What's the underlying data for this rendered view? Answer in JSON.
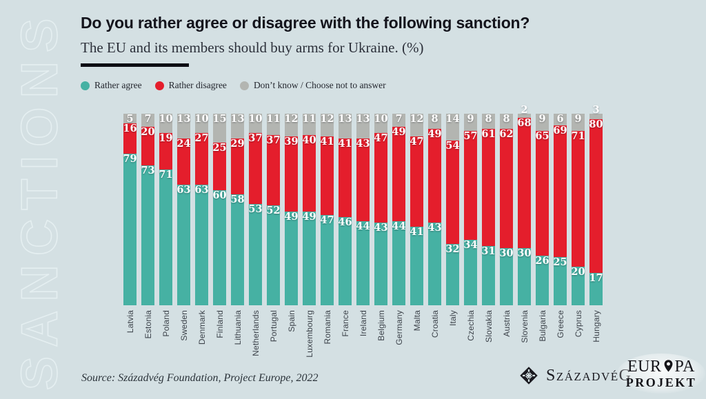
{
  "header": {
    "title": "Do you rather agree or disagree with the following sanction?",
    "subtitle": "The EU and its members should buy arms for Ukraine. (%)"
  },
  "watermark": "SANCTIONS",
  "chart_data": {
    "type": "bar",
    "stacked": true,
    "unit": "%",
    "ylim": [
      0,
      100
    ],
    "grid": false,
    "legend_position": "top-left",
    "categories": [
      "Latvia",
      "Estonia",
      "Poland",
      "Sweden",
      "Denmark",
      "Finland",
      "Lithuania",
      "Netherlands",
      "Portugal",
      "Spain",
      "Luxembourg",
      "Romania",
      "France",
      "Ireland",
      "Belgium",
      "Germany",
      "Malta",
      "Croatia",
      "Italy",
      "Czechia",
      "Slovakia",
      "Austria",
      "Slovenia",
      "Bulgaria",
      "Greece",
      "Cyprus",
      "Hungary"
    ],
    "series": [
      {
        "name": "Rather agree",
        "color": "#46b1a3",
        "values": [
          79,
          73,
          71,
          63,
          63,
          60,
          58,
          53,
          52,
          49,
          49,
          47,
          46,
          44,
          43,
          44,
          41,
          43,
          32,
          34,
          31,
          30,
          30,
          26,
          25,
          20,
          17
        ]
      },
      {
        "name": "Rather disagree",
        "color": "#e41e2c",
        "values": [
          16,
          20,
          19,
          24,
          27,
          25,
          29,
          37,
          37,
          39,
          40,
          41,
          41,
          43,
          47,
          49,
          47,
          49,
          54,
          57,
          61,
          62,
          68,
          65,
          69,
          71,
          80
        ]
      },
      {
        "name": "Don’t know / Choose not to answer",
        "color": "#b3b5b1",
        "values": [
          5,
          7,
          10,
          13,
          10,
          15,
          13,
          10,
          11,
          12,
          11,
          12,
          13,
          13,
          10,
          7,
          12,
          8,
          14,
          9,
          8,
          8,
          2,
          9,
          6,
          9,
          3
        ]
      }
    ]
  },
  "footer": {
    "source": "Source: Századvég Foundation, Project Europe, 2022",
    "logos": {
      "szazadveg": "SzázadvéG",
      "europa_line1_left": "EUR",
      "europa_line1_right": "PA",
      "europa_line2": "PROJEKT"
    }
  },
  "colors": {
    "background": "#d4e0e3",
    "agree": "#46b1a3",
    "disagree": "#e41e2c",
    "dontknow": "#b3b5b1",
    "title_text": "#14141c",
    "underline": "#0c0c13"
  }
}
